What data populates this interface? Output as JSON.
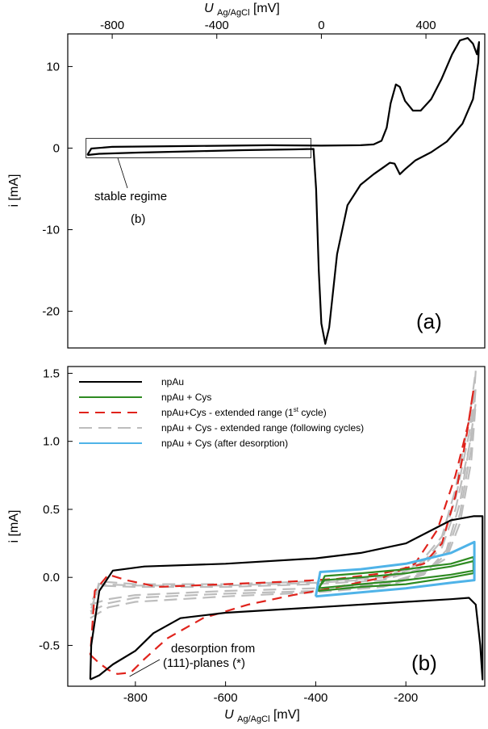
{
  "chart_data": [
    {
      "type": "line",
      "panel_label": "(a)",
      "xlabel_main": "U",
      "xlabel_sub": "Ag/AgCl",
      "xlabel_unit": "[mV]",
      "ylabel": "i [mA]",
      "xlim": [
        -970,
        625
      ],
      "ylim": [
        -24.5,
        14
      ],
      "xticks": [
        -800,
        -400,
        0,
        400
      ],
      "yticks": [
        10,
        0,
        -10,
        -20
      ],
      "xtick_labels": [
        "-800",
        "-400",
        "0",
        "400"
      ],
      "ytick_labels": [
        "10",
        "0",
        "-10",
        "-20"
      ],
      "x_axis_position": "top",
      "annotation": {
        "line1": "stable regime",
        "line2": "(b)",
        "box_x": [
          -900,
          -40
        ],
        "box_y": [
          -1.2,
          1.2
        ]
      },
      "series": [
        {
          "color": "#000000",
          "points": [
            [
              -895,
              -0.85
            ],
            [
              -850,
              -0.7
            ],
            [
              -700,
              -0.55
            ],
            [
              -500,
              -0.4
            ],
            [
              -300,
              -0.25
            ],
            [
              -100,
              -0.15
            ],
            [
              -30,
              -0.1
            ],
            [
              -20,
              -5
            ],
            [
              -10,
              -15
            ],
            [
              0,
              -21.5
            ],
            [
              15,
              -24
            ],
            [
              30,
              -22
            ],
            [
              60,
              -13
            ],
            [
              100,
              -7
            ],
            [
              150,
              -4.5
            ],
            [
              200,
              -3.2
            ],
            [
              240,
              -2.3
            ],
            [
              262,
              -1.8
            ],
            [
              280,
              -1.9
            ],
            [
              300,
              -3.2
            ],
            [
              320,
              -2.6
            ],
            [
              360,
              -1.5
            ],
            [
              420,
              -0.5
            ],
            [
              480,
              0.8
            ],
            [
              540,
              3
            ],
            [
              580,
              6
            ],
            [
              600,
              10.5
            ],
            [
              603,
              13
            ],
            [
              595,
              11.5
            ],
            [
              580,
              12.8
            ],
            [
              560,
              13.5
            ],
            [
              530,
              13.2
            ],
            [
              500,
              11.5
            ],
            [
              460,
              8.5
            ],
            [
              420,
              6
            ],
            [
              380,
              4.6
            ],
            [
              350,
              4.6
            ],
            [
              320,
              5.8
            ],
            [
              300,
              7.5
            ],
            [
              285,
              7.8
            ],
            [
              265,
              5.5
            ],
            [
              250,
              2.5
            ],
            [
              230,
              0.9
            ],
            [
              200,
              0.45
            ],
            [
              150,
              0.35
            ],
            [
              0,
              0.3
            ],
            [
              -200,
              0.35
            ],
            [
              -500,
              0.25
            ],
            [
              -800,
              0.15
            ],
            [
              -880,
              -0.05
            ],
            [
              -895,
              -0.85
            ]
          ]
        }
      ]
    },
    {
      "type": "line",
      "panel_label": "(b)",
      "xlabel_main": "U",
      "xlabel_sub": "Ag/AgCl",
      "xlabel_unit": "[mV]",
      "ylabel": "i [mA]",
      "xlim": [
        -950,
        -25
      ],
      "ylim": [
        -0.8,
        1.55
      ],
      "xticks": [
        -800,
        -600,
        -400,
        -200
      ],
      "yticks": [
        1.5,
        1.0,
        0.5,
        0.0,
        -0.5
      ],
      "xtick_labels": [
        "-800",
        "-600",
        "-400",
        "-200"
      ],
      "ytick_labels": [
        "1.5",
        "1.0",
        "0.5",
        "0.0",
        "-0.5"
      ],
      "annotation": {
        "line1": "desorption from",
        "line2": "(111)-planes (*)",
        "point": [
          -820,
          -0.71
        ]
      },
      "legend_position": "top-left",
      "series": [
        {
          "name": "npAu",
          "color": "#000000",
          "dash": "solid",
          "points": [
            [
              -900,
              -0.75
            ],
            [
              -880,
              -0.72
            ],
            [
              -850,
              -0.64
            ],
            [
              -800,
              -0.54
            ],
            [
              -760,
              -0.41
            ],
            [
              -700,
              -0.3
            ],
            [
              -600,
              -0.26
            ],
            [
              -400,
              -0.22
            ],
            [
              -200,
              -0.18
            ],
            [
              -100,
              -0.16
            ],
            [
              -60,
              -0.15
            ],
            [
              -45,
              -0.2
            ],
            [
              -35,
              -0.5
            ],
            [
              -30,
              -0.75
            ],
            [
              -30,
              0.45
            ],
            [
              -50,
              0.45
            ],
            [
              -100,
              0.42
            ],
            [
              -200,
              0.25
            ],
            [
              -300,
              0.18
            ],
            [
              -400,
              0.14
            ],
            [
              -600,
              0.1
            ],
            [
              -780,
              0.08
            ],
            [
              -850,
              0.05
            ],
            [
              -880,
              -0.1
            ],
            [
              -898,
              -0.5
            ],
            [
              -900,
              -0.75
            ]
          ]
        },
        {
          "name": "npAu + Cys",
          "color": "#2e8b22",
          "dash": "solid",
          "points": [
            [
              -395,
              -0.08
            ],
            [
              -300,
              -0.05
            ],
            [
              -200,
              -0.02
            ],
            [
              -100,
              0.02
            ],
            [
              -50,
              0.05
            ],
            [
              -50,
              0.12
            ],
            [
              -100,
              0.08
            ],
            [
              -200,
              0.03
            ],
            [
              -300,
              0.0
            ],
            [
              -380,
              -0.02
            ],
            [
              -395,
              -0.08
            ]
          ]
        },
        {
          "name": "npAu + Cys",
          "color": "#2e8b22",
          "dash": "solid",
          "points": [
            [
              -395,
              -0.1
            ],
            [
              -300,
              -0.07
            ],
            [
              -200,
              -0.05
            ],
            [
              -100,
              0.0
            ],
            [
              -50,
              0.03
            ],
            [
              -50,
              0.15
            ],
            [
              -100,
              0.1
            ],
            [
              -200,
              0.06
            ],
            [
              -300,
              0.03
            ],
            [
              -380,
              0.01
            ],
            [
              -395,
              -0.1
            ]
          ]
        },
        {
          "name": "npAu+Cys - extended range (1st cycle)",
          "color": "#e0231c",
          "dash": "12,8",
          "points": [
            [
              -900,
              -0.57
            ],
            [
              -880,
              -0.63
            ],
            [
              -860,
              -0.68
            ],
            [
              -840,
              -0.71
            ],
            [
              -810,
              -0.7
            ],
            [
              -780,
              -0.6
            ],
            [
              -730,
              -0.45
            ],
            [
              -650,
              -0.3
            ],
            [
              -550,
              -0.2
            ],
            [
              -450,
              -0.13
            ],
            [
              -350,
              -0.07
            ],
            [
              -250,
              0.0
            ],
            [
              -180,
              0.1
            ],
            [
              -130,
              0.35
            ],
            [
              -90,
              0.75
            ],
            [
              -60,
              1.15
            ],
            [
              -50,
              1.38
            ],
            [
              -65,
              1.05
            ],
            [
              -90,
              0.6
            ],
            [
              -120,
              0.25
            ],
            [
              -160,
              0.1
            ],
            [
              -250,
              0.03
            ],
            [
              -350,
              -0.01
            ],
            [
              -450,
              -0.03
            ],
            [
              -600,
              -0.05
            ],
            [
              -750,
              -0.07
            ],
            [
              -820,
              -0.02
            ],
            [
              -860,
              0.02
            ],
            [
              -890,
              -0.1
            ],
            [
              -900,
              -0.57
            ]
          ]
        },
        {
          "name": "npAu + Cys - extended range (following cycles)",
          "color": "#bdbdbd",
          "dash": "16,8",
          "points": [
            [
              -900,
              -0.3
            ],
            [
              -860,
              -0.22
            ],
            [
              -800,
              -0.18
            ],
            [
              -600,
              -0.14
            ],
            [
              -400,
              -0.11
            ],
            [
              -250,
              -0.07
            ],
            [
              -160,
              0.02
            ],
            [
              -110,
              0.2
            ],
            [
              -80,
              0.55
            ],
            [
              -55,
              1.05
            ],
            [
              -45,
              1.52
            ],
            [
              -60,
              1.15
            ],
            [
              -90,
              0.65
            ],
            [
              -120,
              0.3
            ],
            [
              -170,
              0.1
            ],
            [
              -250,
              0.0
            ],
            [
              -400,
              -0.03
            ],
            [
              -600,
              -0.05
            ],
            [
              -800,
              -0.05
            ],
            [
              -880,
              -0.03
            ],
            [
              -900,
              -0.3
            ]
          ]
        },
        {
          "name": "npAu + Cys - extended range (following cycles)",
          "color": "#bdbdbd",
          "dash": "16,8",
          "points": [
            [
              -900,
              -0.25
            ],
            [
              -860,
              -0.19
            ],
            [
              -800,
              -0.15
            ],
            [
              -600,
              -0.12
            ],
            [
              -400,
              -0.1
            ],
            [
              -250,
              -0.06
            ],
            [
              -160,
              0.03
            ],
            [
              -110,
              0.17
            ],
            [
              -80,
              0.47
            ],
            [
              -55,
              0.95
            ],
            [
              -45,
              1.4
            ],
            [
              -60,
              1.05
            ],
            [
              -90,
              0.58
            ],
            [
              -120,
              0.27
            ],
            [
              -170,
              0.08
            ],
            [
              -250,
              -0.01
            ],
            [
              -400,
              -0.04
            ],
            [
              -600,
              -0.06
            ],
            [
              -800,
              -0.06
            ],
            [
              -880,
              -0.05
            ],
            [
              -900,
              -0.25
            ]
          ]
        },
        {
          "name": "npAu + Cys - extended range (following cycles)",
          "color": "#bdbdbd",
          "dash": "16,8",
          "points": [
            [
              -900,
              -0.2
            ],
            [
              -860,
              -0.16
            ],
            [
              -800,
              -0.13
            ],
            [
              -600,
              -0.1
            ],
            [
              -400,
              -0.08
            ],
            [
              -250,
              -0.05
            ],
            [
              -160,
              0.04
            ],
            [
              -110,
              0.14
            ],
            [
              -80,
              0.4
            ],
            [
              -55,
              0.85
            ],
            [
              -45,
              1.28
            ],
            [
              -60,
              0.95
            ],
            [
              -90,
              0.5
            ],
            [
              -120,
              0.22
            ],
            [
              -170,
              0.06
            ],
            [
              -250,
              -0.02
            ],
            [
              -400,
              -0.05
            ],
            [
              -600,
              -0.07
            ],
            [
              -800,
              -0.07
            ],
            [
              -880,
              -0.06
            ],
            [
              -900,
              -0.2
            ]
          ]
        },
        {
          "name": "npAu + Cys (after desorption)",
          "color": "#4fb3e8",
          "dash": "solid",
          "points": [
            [
              -400,
              -0.14
            ],
            [
              -300,
              -0.11
            ],
            [
              -200,
              -0.08
            ],
            [
              -100,
              -0.04
            ],
            [
              -48,
              -0.02
            ],
            [
              -48,
              0.26
            ],
            [
              -100,
              0.18
            ],
            [
              -200,
              0.1
            ],
            [
              -300,
              0.06
            ],
            [
              -390,
              0.04
            ],
            [
              -400,
              -0.14
            ]
          ]
        }
      ]
    }
  ],
  "legend": {
    "items": [
      {
        "label": "npAu",
        "color": "#000000",
        "dash": "solid"
      },
      {
        "label": "npAu + Cys",
        "color": "#2e8b22",
        "dash": "solid"
      },
      {
        "label_main": "npAu+Cys - extended range (1",
        "label_sup": "st",
        "label_end": " cycle)",
        "color": "#e0231c",
        "dash": "12,8"
      },
      {
        "label": "npAu + Cys - extended range (following cycles)",
        "color": "#bdbdbd",
        "dash": "16,8"
      },
      {
        "label": "npAu + Cys (after desorption)",
        "color": "#4fb3e8",
        "dash": "solid"
      }
    ]
  }
}
